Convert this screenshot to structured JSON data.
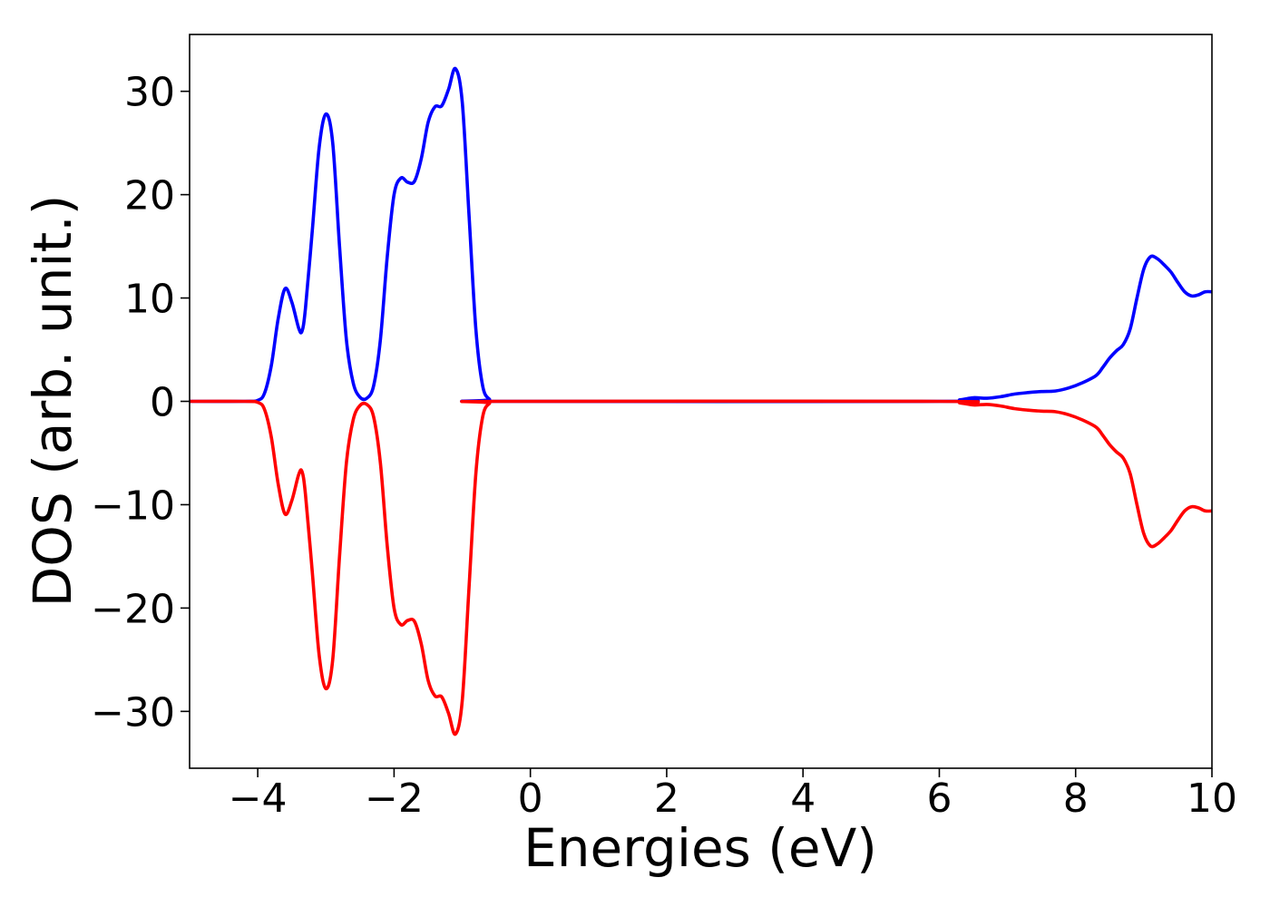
{
  "chart_data": {
    "type": "line",
    "title": "",
    "xlabel": "Energies (eV)",
    "ylabel": "DOS (arb. unit.)",
    "xlim": [
      -5,
      10
    ],
    "ylim": [
      -35.5,
      35.5
    ],
    "xticks": [
      -4,
      -2,
      0,
      2,
      4,
      6,
      8,
      10
    ],
    "yticks": [
      -30,
      -20,
      -10,
      0,
      10,
      20,
      30
    ],
    "xtick_labels": [
      "−4",
      "−2",
      "0",
      "2",
      "4",
      "6",
      "8",
      "10"
    ],
    "ytick_labels": [
      "−30",
      "−20",
      "−10",
      "0",
      "10",
      "20",
      "30"
    ],
    "grid": false,
    "legend": "none",
    "series": [
      {
        "color": "#0000ff",
        "points": [
          [
            -5,
            0
          ],
          [
            -4.2,
            0
          ],
          [
            -4.0,
            0.1
          ],
          [
            -3.9,
            0.8
          ],
          [
            -3.8,
            3.5
          ],
          [
            -3.7,
            8.0
          ],
          [
            -3.6,
            10.9
          ],
          [
            -3.5,
            9.6
          ],
          [
            -3.4,
            7.1
          ],
          [
            -3.35,
            6.8
          ],
          [
            -3.3,
            9.0
          ],
          [
            -3.2,
            16.5
          ],
          [
            -3.1,
            24.5
          ],
          [
            -3.0,
            27.8
          ],
          [
            -2.9,
            25.0
          ],
          [
            -2.8,
            15.0
          ],
          [
            -2.7,
            6.0
          ],
          [
            -2.6,
            1.8
          ],
          [
            -2.5,
            0.4
          ],
          [
            -2.4,
            0.3
          ],
          [
            -2.3,
            1.5
          ],
          [
            -2.2,
            6.0
          ],
          [
            -2.1,
            14.0
          ],
          [
            -2.0,
            20.0
          ],
          [
            -1.9,
            21.6
          ],
          [
            -1.8,
            21.2
          ],
          [
            -1.7,
            21.3
          ],
          [
            -1.6,
            23.5
          ],
          [
            -1.5,
            27.0
          ],
          [
            -1.4,
            28.5
          ],
          [
            -1.3,
            28.6
          ],
          [
            -1.2,
            30.2
          ],
          [
            -1.1,
            32.2
          ],
          [
            -1.0,
            29.0
          ],
          [
            -0.9,
            18.0
          ],
          [
            -0.8,
            7.0
          ],
          [
            -0.7,
            1.5
          ],
          [
            -0.6,
            0.2
          ],
          [
            -0.5,
            0
          ],
          [
            6.0,
            0
          ],
          [
            6.3,
            0.15
          ],
          [
            6.5,
            0.35
          ],
          [
            6.7,
            0.3
          ],
          [
            6.9,
            0.45
          ],
          [
            7.1,
            0.7
          ],
          [
            7.3,
            0.85
          ],
          [
            7.5,
            0.95
          ],
          [
            7.7,
            1.0
          ],
          [
            7.9,
            1.3
          ],
          [
            8.1,
            1.8
          ],
          [
            8.3,
            2.5
          ],
          [
            8.4,
            3.3
          ],
          [
            8.5,
            4.2
          ],
          [
            8.6,
            4.9
          ],
          [
            8.7,
            5.5
          ],
          [
            8.8,
            7.0
          ],
          [
            8.9,
            10.0
          ],
          [
            9.0,
            12.8
          ],
          [
            9.1,
            14.0
          ],
          [
            9.2,
            13.8
          ],
          [
            9.3,
            13.2
          ],
          [
            9.4,
            12.5
          ],
          [
            9.5,
            11.5
          ],
          [
            9.6,
            10.6
          ],
          [
            9.7,
            10.2
          ],
          [
            9.8,
            10.3
          ],
          [
            9.9,
            10.6
          ],
          [
            10.0,
            10.6
          ]
        ]
      },
      {
        "color": "#ff0000",
        "points": [
          [
            -5,
            0
          ],
          [
            -4.2,
            0
          ],
          [
            -4.0,
            -0.1
          ],
          [
            -3.9,
            -0.8
          ],
          [
            -3.8,
            -3.5
          ],
          [
            -3.7,
            -8.0
          ],
          [
            -3.6,
            -10.9
          ],
          [
            -3.5,
            -9.6
          ],
          [
            -3.4,
            -7.1
          ],
          [
            -3.35,
            -6.8
          ],
          [
            -3.3,
            -9.0
          ],
          [
            -3.2,
            -16.5
          ],
          [
            -3.1,
            -24.5
          ],
          [
            -3.0,
            -27.8
          ],
          [
            -2.9,
            -25.0
          ],
          [
            -2.8,
            -15.0
          ],
          [
            -2.7,
            -6.0
          ],
          [
            -2.6,
            -1.8
          ],
          [
            -2.5,
            -0.4
          ],
          [
            -2.4,
            -0.3
          ],
          [
            -2.3,
            -1.5
          ],
          [
            -2.2,
            -6.0
          ],
          [
            -2.1,
            -14.0
          ],
          [
            -2.0,
            -20.0
          ],
          [
            -1.9,
            -21.6
          ],
          [
            -1.8,
            -21.2
          ],
          [
            -1.7,
            -21.3
          ],
          [
            -1.6,
            -23.5
          ],
          [
            -1.5,
            -27.0
          ],
          [
            -1.4,
            -28.5
          ],
          [
            -1.3,
            -28.6
          ],
          [
            -1.2,
            -30.2
          ],
          [
            -1.1,
            -32.2
          ],
          [
            -1.0,
            -29.0
          ],
          [
            -0.9,
            -18.0
          ],
          [
            -0.8,
            -7.0
          ],
          [
            -0.7,
            -1.5
          ],
          [
            -0.6,
            -0.2
          ],
          [
            -0.5,
            0
          ],
          [
            6.0,
            0
          ],
          [
            6.3,
            -0.15
          ],
          [
            6.5,
            -0.35
          ],
          [
            6.7,
            -0.3
          ],
          [
            6.9,
            -0.45
          ],
          [
            7.1,
            -0.7
          ],
          [
            7.3,
            -0.85
          ],
          [
            7.5,
            -0.95
          ],
          [
            7.7,
            -1.0
          ],
          [
            7.9,
            -1.3
          ],
          [
            8.1,
            -1.8
          ],
          [
            8.3,
            -2.5
          ],
          [
            8.4,
            -3.3
          ],
          [
            8.5,
            -4.2
          ],
          [
            8.6,
            -4.9
          ],
          [
            8.7,
            -5.5
          ],
          [
            8.8,
            -7.0
          ],
          [
            8.9,
            -10.0
          ],
          [
            9.0,
            -12.8
          ],
          [
            9.1,
            -14.0
          ],
          [
            9.2,
            -13.8
          ],
          [
            9.3,
            -13.2
          ],
          [
            9.4,
            -12.5
          ],
          [
            9.5,
            -11.5
          ],
          [
            9.6,
            -10.6
          ],
          [
            9.7,
            -10.2
          ],
          [
            9.8,
            -10.3
          ],
          [
            9.9,
            -10.6
          ],
          [
            10.0,
            -10.6
          ]
        ]
      }
    ]
  }
}
